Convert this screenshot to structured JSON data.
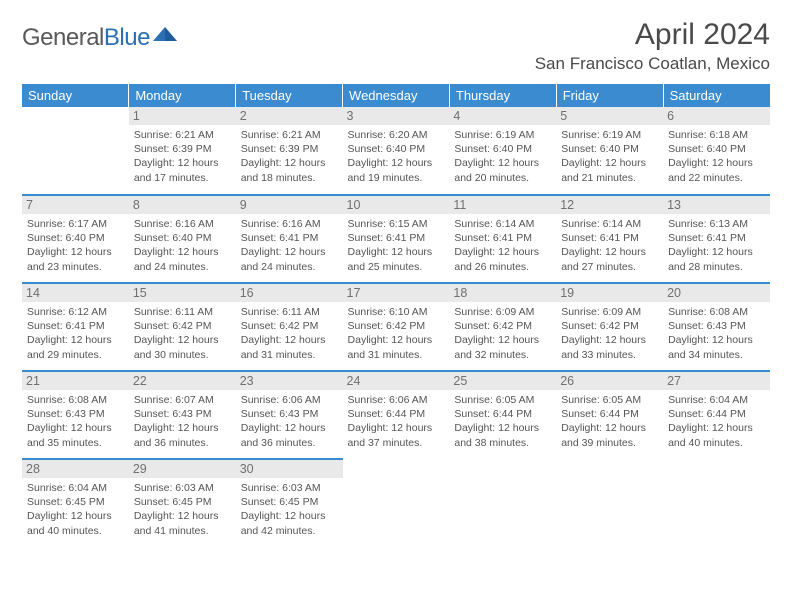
{
  "logo": {
    "part1": "General",
    "part2": "Blue"
  },
  "title": "April 2024",
  "location": "San Francisco Coatlan, Mexico",
  "colors": {
    "header_bg": "#3a8bd0",
    "header_text": "#ffffff",
    "daynum_bg": "#e9e9e9",
    "daynum_text": "#707070",
    "rule": "#3a8bd0",
    "body_text": "#555555",
    "logo_gray": "#595959",
    "logo_blue": "#2b6fb5"
  },
  "weekdays": [
    "Sunday",
    "Monday",
    "Tuesday",
    "Wednesday",
    "Thursday",
    "Friday",
    "Saturday"
  ],
  "weeks": [
    [
      null,
      {
        "n": "1",
        "sr": "6:21 AM",
        "ss": "6:39 PM",
        "dl": "12 hours and 17 minutes."
      },
      {
        "n": "2",
        "sr": "6:21 AM",
        "ss": "6:39 PM",
        "dl": "12 hours and 18 minutes."
      },
      {
        "n": "3",
        "sr": "6:20 AM",
        "ss": "6:40 PM",
        "dl": "12 hours and 19 minutes."
      },
      {
        "n": "4",
        "sr": "6:19 AM",
        "ss": "6:40 PM",
        "dl": "12 hours and 20 minutes."
      },
      {
        "n": "5",
        "sr": "6:19 AM",
        "ss": "6:40 PM",
        "dl": "12 hours and 21 minutes."
      },
      {
        "n": "6",
        "sr": "6:18 AM",
        "ss": "6:40 PM",
        "dl": "12 hours and 22 minutes."
      }
    ],
    [
      {
        "n": "7",
        "sr": "6:17 AM",
        "ss": "6:40 PM",
        "dl": "12 hours and 23 minutes."
      },
      {
        "n": "8",
        "sr": "6:16 AM",
        "ss": "6:40 PM",
        "dl": "12 hours and 24 minutes."
      },
      {
        "n": "9",
        "sr": "6:16 AM",
        "ss": "6:41 PM",
        "dl": "12 hours and 24 minutes."
      },
      {
        "n": "10",
        "sr": "6:15 AM",
        "ss": "6:41 PM",
        "dl": "12 hours and 25 minutes."
      },
      {
        "n": "11",
        "sr": "6:14 AM",
        "ss": "6:41 PM",
        "dl": "12 hours and 26 minutes."
      },
      {
        "n": "12",
        "sr": "6:14 AM",
        "ss": "6:41 PM",
        "dl": "12 hours and 27 minutes."
      },
      {
        "n": "13",
        "sr": "6:13 AM",
        "ss": "6:41 PM",
        "dl": "12 hours and 28 minutes."
      }
    ],
    [
      {
        "n": "14",
        "sr": "6:12 AM",
        "ss": "6:41 PM",
        "dl": "12 hours and 29 minutes."
      },
      {
        "n": "15",
        "sr": "6:11 AM",
        "ss": "6:42 PM",
        "dl": "12 hours and 30 minutes."
      },
      {
        "n": "16",
        "sr": "6:11 AM",
        "ss": "6:42 PM",
        "dl": "12 hours and 31 minutes."
      },
      {
        "n": "17",
        "sr": "6:10 AM",
        "ss": "6:42 PM",
        "dl": "12 hours and 31 minutes."
      },
      {
        "n": "18",
        "sr": "6:09 AM",
        "ss": "6:42 PM",
        "dl": "12 hours and 32 minutes."
      },
      {
        "n": "19",
        "sr": "6:09 AM",
        "ss": "6:42 PM",
        "dl": "12 hours and 33 minutes."
      },
      {
        "n": "20",
        "sr": "6:08 AM",
        "ss": "6:43 PM",
        "dl": "12 hours and 34 minutes."
      }
    ],
    [
      {
        "n": "21",
        "sr": "6:08 AM",
        "ss": "6:43 PM",
        "dl": "12 hours and 35 minutes."
      },
      {
        "n": "22",
        "sr": "6:07 AM",
        "ss": "6:43 PM",
        "dl": "12 hours and 36 minutes."
      },
      {
        "n": "23",
        "sr": "6:06 AM",
        "ss": "6:43 PM",
        "dl": "12 hours and 36 minutes."
      },
      {
        "n": "24",
        "sr": "6:06 AM",
        "ss": "6:44 PM",
        "dl": "12 hours and 37 minutes."
      },
      {
        "n": "25",
        "sr": "6:05 AM",
        "ss": "6:44 PM",
        "dl": "12 hours and 38 minutes."
      },
      {
        "n": "26",
        "sr": "6:05 AM",
        "ss": "6:44 PM",
        "dl": "12 hours and 39 minutes."
      },
      {
        "n": "27",
        "sr": "6:04 AM",
        "ss": "6:44 PM",
        "dl": "12 hours and 40 minutes."
      }
    ],
    [
      {
        "n": "28",
        "sr": "6:04 AM",
        "ss": "6:45 PM",
        "dl": "12 hours and 40 minutes."
      },
      {
        "n": "29",
        "sr": "6:03 AM",
        "ss": "6:45 PM",
        "dl": "12 hours and 41 minutes."
      },
      {
        "n": "30",
        "sr": "6:03 AM",
        "ss": "6:45 PM",
        "dl": "12 hours and 42 minutes."
      },
      null,
      null,
      null,
      null
    ]
  ],
  "labels": {
    "sunrise": "Sunrise: ",
    "sunset": "Sunset: ",
    "daylight": "Daylight: "
  }
}
